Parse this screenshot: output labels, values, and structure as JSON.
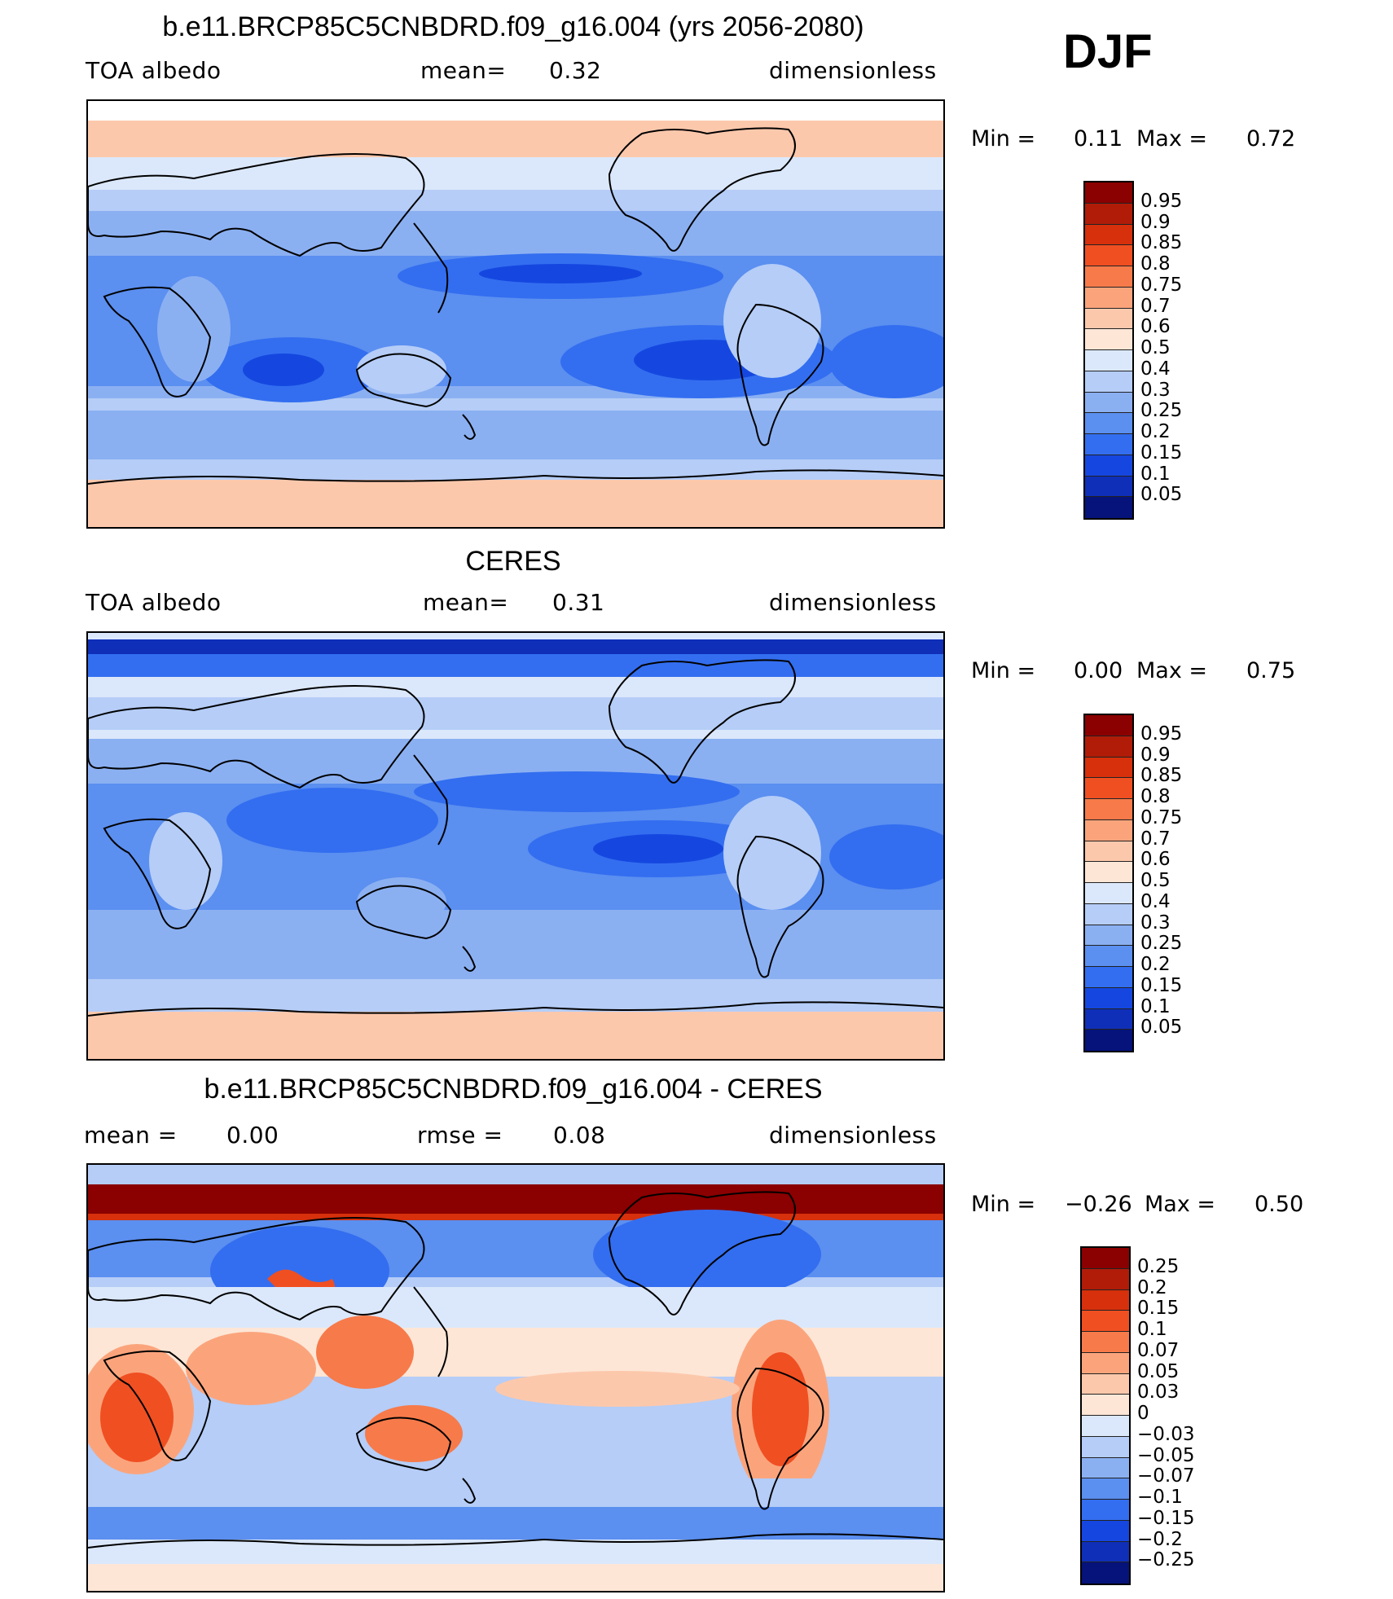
{
  "season": "DJF",
  "panels": [
    {
      "title": "b.e11.BRCP85C5CNBDRD.f09_g16.004 (yrs 2056-2080)",
      "left_label": "TOA albedo",
      "mid_label": "mean=",
      "mid_value": "0.32",
      "right_label": "dimensionless",
      "min_label": "Min =",
      "min_value": "0.11",
      "max_label": "Max =",
      "max_value": "0.72",
      "colorbar_labels": [
        "0.95",
        "0.9",
        "0.85",
        "0.8",
        "0.75",
        "0.7",
        "0.6",
        "0.5",
        "0.4",
        "0.3",
        "0.25",
        "0.2",
        "0.15",
        "0.1",
        "0.05"
      ]
    },
    {
      "title": "CERES",
      "left_label": "TOA albedo",
      "mid_label": "mean=",
      "mid_value": "0.31",
      "right_label": "dimensionless",
      "min_label": "Min =",
      "min_value": "0.00",
      "max_label": "Max =",
      "max_value": "0.75",
      "colorbar_labels": [
        "0.95",
        "0.9",
        "0.85",
        "0.8",
        "0.75",
        "0.7",
        "0.6",
        "0.5",
        "0.4",
        "0.3",
        "0.25",
        "0.2",
        "0.15",
        "0.1",
        "0.05"
      ]
    },
    {
      "title": "b.e11.BRCP85C5CNBDRD.f09_g16.004 - CERES",
      "left_label": "mean =",
      "left_value": "0.00",
      "mid_label": "rmse =",
      "mid_value": "0.08",
      "right_label": "dimensionless",
      "min_label": "Min =",
      "min_value": "−0.26",
      "max_label": "Max =",
      "max_value": "0.50",
      "colorbar_labels": [
        "0.25",
        "0.2",
        "0.15",
        "0.1",
        "0.07",
        "0.05",
        "0.03",
        "0",
        "−0.03",
        "−0.05",
        "−0.07",
        "−0.1",
        "−0.15",
        "−0.2",
        "−0.25"
      ]
    }
  ],
  "colorbar_colors": [
    "#8b0000",
    "#b01c08",
    "#d6300c",
    "#f04f22",
    "#f77a4a",
    "#fba47c",
    "#fcc8ac",
    "#fde6d6",
    "#dbe8fb",
    "#b5cdf7",
    "#8bb0f2",
    "#5b8ff0",
    "#336ef0",
    "#1547e0",
    "#0f2fb8",
    "#05137a"
  ]
}
